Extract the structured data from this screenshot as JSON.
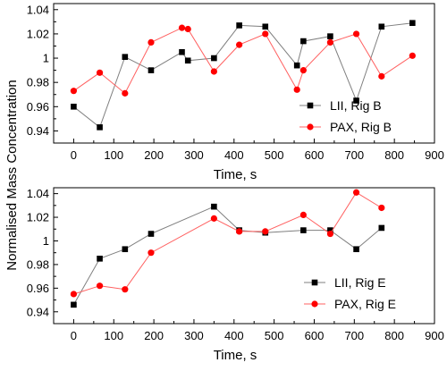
{
  "figure": {
    "ylabel": "Normalised Mass Concentration"
  },
  "colors": {
    "lii": "#000000",
    "lii_line": "#7f7f7f",
    "pax": "#ff0000",
    "pax_line": "#ff6060"
  },
  "chart_data": [
    {
      "type": "line",
      "xlabel": "Time, s",
      "xlim": [
        -50,
        900
      ],
      "ylim": [
        0.93,
        1.045
      ],
      "xticks": [
        0,
        100,
        200,
        300,
        400,
        500,
        600,
        700,
        800,
        900
      ],
      "yticks": [
        0.94,
        0.96,
        0.98,
        1,
        1.02,
        1.04
      ],
      "ytick_labels": [
        "0.94",
        "0.96",
        "0.98",
        "1",
        "1.02",
        "1.04"
      ],
      "legend_position": "bottom-right",
      "series": [
        {
          "name": "LII, Rig B",
          "marker": "square",
          "x": [
            0,
            65,
            128,
            193,
            270,
            285,
            350,
            413,
            478,
            557,
            573,
            640,
            705,
            768,
            845
          ],
          "y": [
            0.96,
            0.943,
            1.001,
            0.99,
            1.005,
            0.998,
            1.0,
            1.027,
            1.026,
            0.994,
            1.014,
            1.018,
            0.965,
            1.026,
            1.029
          ]
        },
        {
          "name": "PAX, Rig B",
          "marker": "circle",
          "x": [
            0,
            65,
            128,
            193,
            270,
            285,
            350,
            413,
            478,
            557,
            573,
            640,
            705,
            768,
            845
          ],
          "y": [
            0.973,
            0.988,
            0.971,
            1.013,
            1.025,
            1.024,
            0.989,
            1.011,
            1.02,
            0.974,
            0.99,
            1.013,
            1.02,
            0.985,
            1.002
          ]
        }
      ]
    },
    {
      "type": "line",
      "xlabel": "Time, s",
      "xlim": [
        -50,
        900
      ],
      "ylim": [
        0.93,
        1.045
      ],
      "xticks": [
        0,
        100,
        200,
        300,
        400,
        500,
        600,
        700,
        800,
        900
      ],
      "yticks": [
        0.94,
        0.96,
        0.98,
        1,
        1.02,
        1.04
      ],
      "ytick_labels": [
        "0.94",
        "0.96",
        "0.98",
        "1",
        "1.02",
        "1.04"
      ],
      "legend_position": "bottom-right",
      "series": [
        {
          "name": "LII, Rig E",
          "marker": "square",
          "x": [
            0,
            65,
            128,
            193,
            350,
            413,
            478,
            573,
            640,
            705,
            768
          ],
          "y": [
            0.946,
            0.985,
            0.993,
            1.006,
            1.029,
            1.009,
            1.007,
            1.009,
            1.009,
            0.993,
            1.011
          ]
        },
        {
          "name": "PAX, Rig E",
          "marker": "circle",
          "x": [
            0,
            65,
            128,
            193,
            350,
            413,
            478,
            573,
            640,
            705,
            768
          ],
          "y": [
            0.955,
            0.962,
            0.959,
            0.99,
            1.019,
            1.008,
            1.008,
            1.022,
            1.006,
            1.041,
            1.028
          ]
        }
      ]
    }
  ]
}
